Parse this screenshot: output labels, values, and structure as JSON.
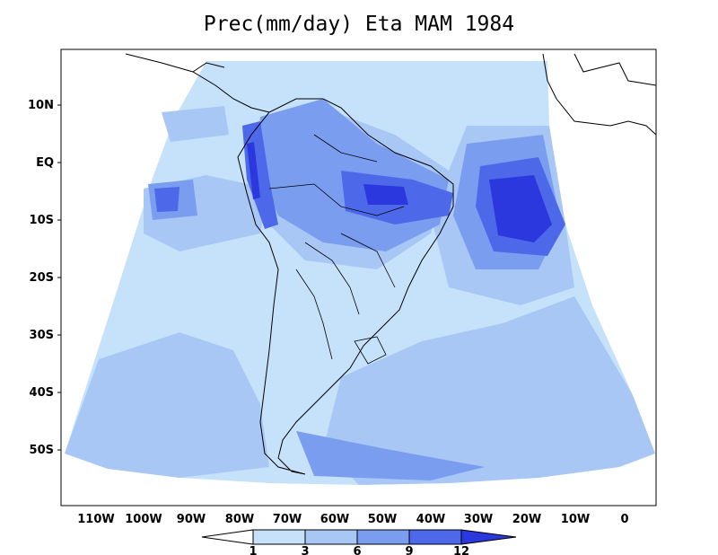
{
  "title": "Prec(mm/day) Eta MAM 1984",
  "lat_labels": [
    "10N",
    "EQ",
    "10S",
    "20S",
    "30S",
    "40S",
    "50S"
  ],
  "lon_labels": [
    "110W",
    "100W",
    "90W",
    "80W",
    "70W",
    "60W",
    "50W",
    "40W",
    "30W",
    "20W",
    "10W",
    "0"
  ],
  "colorbar": {
    "labels": [
      "1",
      "3",
      "6",
      "9",
      "12"
    ],
    "colors": [
      "#ffffff",
      "#c6e2fb",
      "#a8c7f5",
      "#7a9df0",
      "#4d69ea",
      "#2b38dd"
    ]
  },
  "palette": {
    "light": "#c6e2fb",
    "mid": "#a8c7f5",
    "dark": "#7a9df0",
    "deeper": "#4d69ea",
    "max": "#2b38dd"
  }
}
